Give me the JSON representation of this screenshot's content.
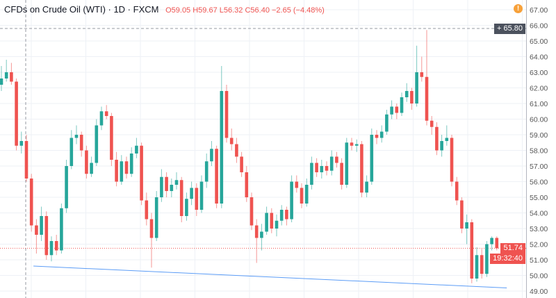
{
  "header": {
    "title": "CFDs on Crude Oil (WTI) · 1D · FXCM",
    "ohlc": "O59.05 H59.67 L56.32 C56.40 −2.65 (−4.48%)"
  },
  "colors": {
    "up": "#26a69a",
    "down": "#ef5350",
    "grid": "#eef1f6",
    "trendline": "#5b9cf6",
    "crosshair_label": "#4c525e",
    "warning": "#f7a13a"
  },
  "icons": {
    "warning": "exclamation-circle-icon",
    "crosshair": "plus-icon"
  },
  "warning_glyph": "!",
  "crosshair_price": "65.80",
  "last_price": "51.74",
  "countdown": "19:32:40",
  "chart_data": {
    "type": "candlestick",
    "title": "CFDs on Crude Oil (WTI) · 1D · FXCM",
    "ylim": [
      48.8,
      67.6
    ],
    "yticks": [
      "67.00",
      "66.00",
      "65.00",
      "64.00",
      "63.00",
      "62.00",
      "61.00",
      "60.00",
      "59.00",
      "58.00",
      "57.00",
      "56.00",
      "55.00",
      "54.00",
      "53.00",
      "52.00",
      "51.00",
      "50.00",
      "49.00"
    ],
    "grid": true,
    "last_price": 51.74,
    "crosshair_price": 65.8,
    "trendline": {
      "from": {
        "candle": 6.4,
        "price": 50.6
      },
      "to": {
        "candle": 101,
        "price": 49.2
      }
    },
    "ohlc": [
      [
        62.2,
        63.4,
        61.8,
        62.6
      ],
      [
        62.6,
        63.8,
        62.4,
        63.0
      ],
      [
        63.0,
        63.6,
        62.2,
        62.4
      ],
      [
        62.4,
        62.6,
        58.0,
        58.3
      ],
      [
        58.3,
        59.2,
        57.8,
        58.6
      ],
      [
        58.6,
        59.0,
        56.0,
        56.2
      ],
      [
        56.2,
        56.5,
        52.8,
        53.2
      ],
      [
        53.2,
        53.6,
        51.4,
        52.6
      ],
      [
        52.6,
        54.4,
        52.2,
        53.8
      ],
      [
        53.8,
        54.1,
        51.0,
        51.3
      ],
      [
        51.3,
        52.5,
        50.9,
        52.2
      ],
      [
        52.2,
        52.6,
        51.3,
        51.6
      ],
      [
        51.6,
        54.6,
        51.4,
        54.3
      ],
      [
        54.3,
        57.4,
        54.0,
        57.0
      ],
      [
        57.0,
        59.3,
        56.8,
        58.8
      ],
      [
        58.8,
        59.6,
        58.4,
        59.0
      ],
      [
        59.0,
        59.2,
        57.6,
        58.0
      ],
      [
        58.0,
        58.3,
        56.2,
        56.5
      ],
      [
        56.5,
        57.6,
        56.3,
        57.2
      ],
      [
        57.2,
        60.0,
        57.0,
        59.6
      ],
      [
        59.6,
        60.8,
        59.3,
        60.5
      ],
      [
        60.5,
        60.9,
        60.0,
        60.2
      ],
      [
        60.2,
        60.4,
        57.0,
        57.4
      ],
      [
        57.4,
        57.9,
        55.7,
        56.0
      ],
      [
        56.0,
        57.7,
        55.8,
        57.3
      ],
      [
        57.3,
        57.6,
        56.2,
        56.5
      ],
      [
        56.5,
        58.2,
        56.3,
        57.8
      ],
      [
        57.8,
        58.8,
        57.5,
        58.3
      ],
      [
        58.3,
        58.5,
        54.5,
        54.8
      ],
      [
        54.8,
        55.3,
        53.2,
        53.6
      ],
      [
        53.6,
        54.0,
        50.5,
        52.4
      ],
      [
        52.4,
        55.4,
        52.2,
        55.0
      ],
      [
        55.0,
        56.8,
        54.7,
        56.3
      ],
      [
        56.3,
        56.6,
        55.0,
        55.4
      ],
      [
        55.4,
        56.2,
        55.0,
        55.8
      ],
      [
        55.8,
        56.6,
        55.5,
        56.1
      ],
      [
        56.1,
        56.3,
        53.4,
        53.8
      ],
      [
        53.8,
        55.3,
        53.5,
        54.9
      ],
      [
        54.9,
        56.0,
        54.5,
        55.6
      ],
      [
        55.6,
        55.9,
        53.8,
        54.2
      ],
      [
        54.2,
        56.4,
        54.0,
        56.0
      ],
      [
        56.0,
        57.8,
        55.6,
        57.3
      ],
      [
        57.3,
        58.6,
        57.0,
        58.1
      ],
      [
        58.1,
        58.3,
        54.3,
        54.6
      ],
      [
        54.6,
        63.4,
        54.3,
        61.8
      ],
      [
        61.8,
        62.2,
        58.5,
        58.8
      ],
      [
        58.8,
        59.4,
        58.0,
        58.4
      ],
      [
        58.4,
        58.8,
        57.2,
        57.6
      ],
      [
        57.6,
        57.9,
        56.3,
        56.6
      ],
      [
        56.6,
        57.0,
        54.7,
        55.0
      ],
      [
        55.0,
        55.3,
        52.9,
        53.2
      ],
      [
        53.2,
        53.6,
        50.8,
        52.4
      ],
      [
        52.4,
        53.3,
        51.6,
        52.8
      ],
      [
        52.8,
        54.4,
        52.6,
        54.0
      ],
      [
        54.0,
        54.3,
        52.7,
        53.0
      ],
      [
        53.0,
        53.9,
        52.5,
        53.5
      ],
      [
        53.5,
        54.5,
        53.2,
        54.2
      ],
      [
        54.2,
        54.4,
        53.2,
        53.6
      ],
      [
        53.6,
        56.4,
        53.4,
        56.0
      ],
      [
        56.0,
        56.4,
        55.3,
        55.6
      ],
      [
        55.6,
        55.9,
        54.3,
        54.6
      ],
      [
        54.6,
        56.2,
        54.4,
        55.8
      ],
      [
        55.8,
        57.6,
        55.5,
        57.2
      ],
      [
        57.2,
        57.5,
        56.3,
        56.6
      ],
      [
        56.6,
        57.4,
        56.2,
        57.0
      ],
      [
        57.0,
        57.3,
        56.4,
        56.7
      ],
      [
        56.7,
        58.0,
        56.4,
        57.6
      ],
      [
        57.6,
        57.9,
        56.9,
        57.2
      ],
      [
        57.2,
        57.5,
        55.5,
        55.8
      ],
      [
        55.8,
        58.8,
        55.6,
        58.5
      ],
      [
        58.5,
        58.8,
        58.0,
        58.3
      ],
      [
        58.3,
        58.7,
        57.9,
        58.4
      ],
      [
        58.4,
        58.6,
        55.0,
        55.3
      ],
      [
        55.3,
        56.4,
        55.0,
        56.0
      ],
      [
        56.0,
        59.4,
        55.8,
        59.0
      ],
      [
        59.0,
        59.3,
        58.4,
        58.8
      ],
      [
        58.8,
        59.6,
        58.5,
        59.2
      ],
      [
        59.2,
        60.6,
        59.0,
        60.3
      ],
      [
        60.3,
        61.2,
        60.0,
        60.8
      ],
      [
        60.8,
        61.0,
        60.0,
        60.4
      ],
      [
        60.4,
        61.7,
        60.2,
        61.4
      ],
      [
        61.4,
        62.3,
        61.1,
        61.8
      ],
      [
        61.8,
        62.0,
        60.6,
        61.0
      ],
      [
        61.0,
        64.7,
        60.8,
        63.0
      ],
      [
        63.0,
        64.0,
        62.4,
        62.7
      ],
      [
        62.7,
        65.7,
        59.6,
        59.9
      ],
      [
        59.9,
        60.2,
        59.0,
        59.5
      ],
      [
        59.5,
        59.8,
        57.7,
        58.0
      ],
      [
        58.0,
        59.0,
        57.6,
        58.6
      ],
      [
        58.6,
        59.6,
        58.3,
        58.8
      ],
      [
        58.8,
        59.0,
        55.7,
        56.0
      ],
      [
        56.0,
        56.3,
        54.5,
        54.8
      ],
      [
        54.8,
        55.0,
        52.7,
        53.0
      ],
      [
        53.0,
        53.9,
        52.0,
        53.4
      ],
      [
        53.4,
        53.6,
        49.5,
        49.8
      ],
      [
        49.8,
        51.8,
        49.6,
        51.3
      ],
      [
        51.3,
        51.7,
        49.8,
        50.1
      ],
      [
        50.1,
        52.2,
        49.9,
        52.0
      ],
      [
        52.0,
        52.5,
        51.6,
        52.4
      ],
      [
        52.4,
        52.5,
        51.6,
        51.74
      ]
    ]
  }
}
